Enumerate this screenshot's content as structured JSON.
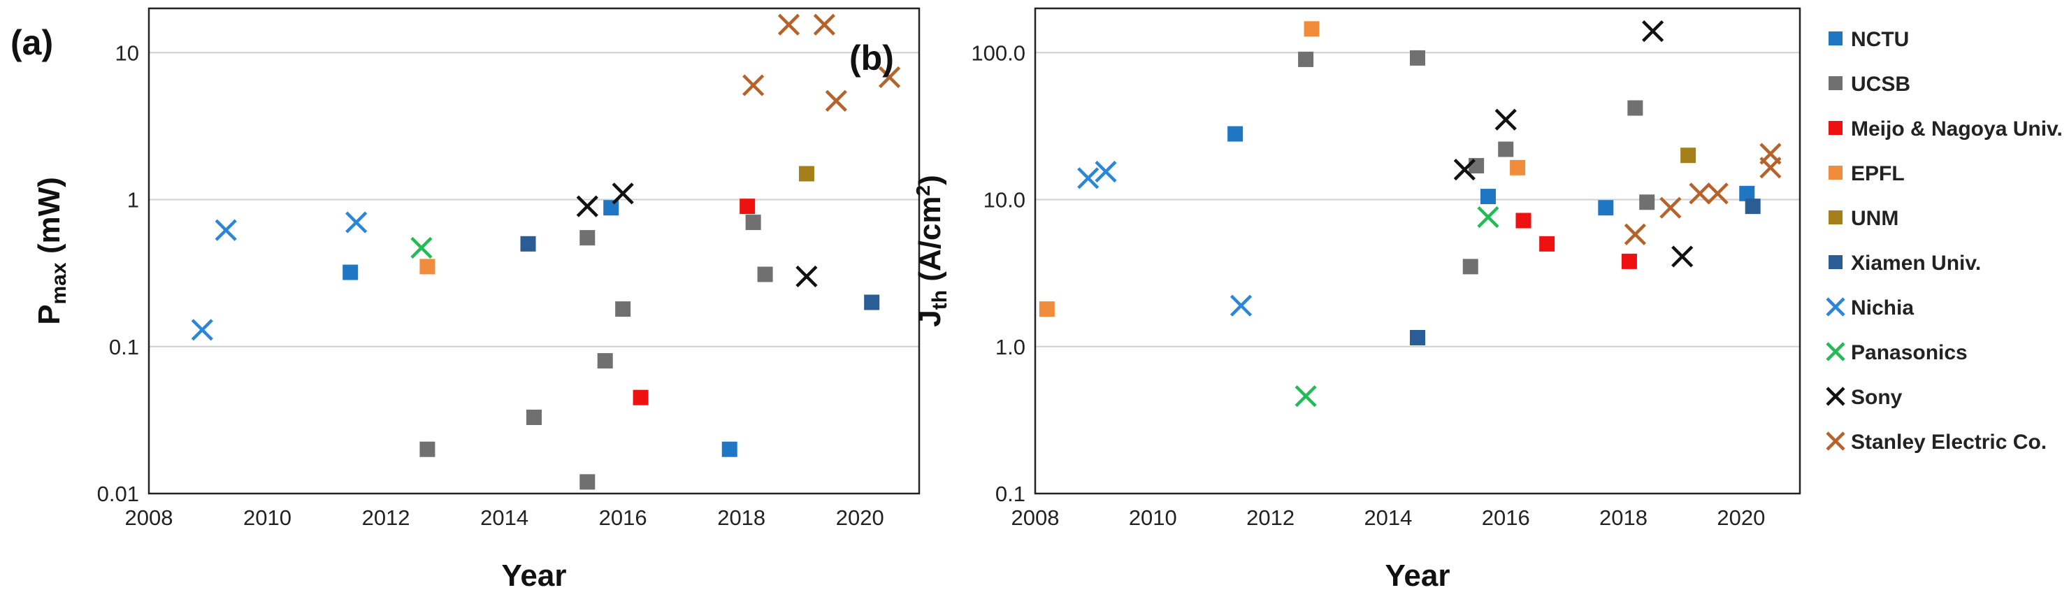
{
  "series_styles": [
    {
      "name": "NCTU",
      "marker": "square",
      "color": "#1f77c4"
    },
    {
      "name": "UCSB",
      "marker": "square",
      "color": "#707070"
    },
    {
      "name": "Meijo & Nagoya Univ.",
      "marker": "square",
      "color": "#ee1111"
    },
    {
      "name": "EPFL",
      "marker": "square",
      "color": "#f08c3c"
    },
    {
      "name": "UNM",
      "marker": "square",
      "color": "#a5801a"
    },
    {
      "name": "Xiamen Univ.",
      "marker": "square",
      "color": "#2a5d96"
    },
    {
      "name": "Nichia",
      "marker": "x",
      "color": "#2b86d8"
    },
    {
      "name": "Panasonics",
      "marker": "x",
      "color": "#22bb55"
    },
    {
      "name": "Sony",
      "marker": "x",
      "color": "#111111"
    },
    {
      "name": "Stanley Electric Co.",
      "marker": "x",
      "color": "#b5632b"
    }
  ],
  "chart_data": [
    {
      "type": "scatter",
      "panel": "(a)",
      "xlabel": "Year",
      "ylabel_main": "P",
      "ylabel_sub": "max",
      "ylabel_unit": " (mW)",
      "xlim": [
        2008,
        2021
      ],
      "ylim": [
        0.01,
        20
      ],
      "yscale": "log",
      "xticks": [
        2008,
        2010,
        2012,
        2014,
        2016,
        2018,
        2020
      ],
      "yticks": [
        {
          "value": 0.01,
          "label": "0.01"
        },
        {
          "value": 0.1,
          "label": "0.1"
        },
        {
          "value": 1,
          "label": "1"
        },
        {
          "value": 10,
          "label": "10"
        }
      ],
      "grid": true,
      "series": [
        {
          "name": "NCTU",
          "points": [
            [
              2011.4,
              0.32
            ],
            [
              2015.8,
              0.88
            ],
            [
              2017.8,
              0.02
            ]
          ]
        },
        {
          "name": "UCSB",
          "points": [
            [
              2012.7,
              0.02
            ],
            [
              2014.5,
              0.033
            ],
            [
              2015.4,
              0.55
            ],
            [
              2015.4,
              0.012
            ],
            [
              2015.7,
              0.08
            ],
            [
              2016.0,
              0.18
            ],
            [
              2018.2,
              0.7
            ],
            [
              2018.4,
              0.31
            ]
          ]
        },
        {
          "name": "Meijo & Nagoya Univ.",
          "points": [
            [
              2016.3,
              0.045
            ],
            [
              2018.1,
              0.9
            ]
          ]
        },
        {
          "name": "EPFL",
          "points": [
            [
              2012.7,
              0.35
            ]
          ]
        },
        {
          "name": "UNM",
          "points": [
            [
              2019.1,
              1.5
            ]
          ]
        },
        {
          "name": "Xiamen Univ.",
          "points": [
            [
              2014.4,
              0.5
            ],
            [
              2020.2,
              0.2
            ]
          ]
        },
        {
          "name": "Nichia",
          "points": [
            [
              2008.9,
              0.13
            ],
            [
              2009.3,
              0.62
            ],
            [
              2011.5,
              0.7
            ]
          ]
        },
        {
          "name": "Panasonics",
          "points": [
            [
              2012.6,
              0.47
            ]
          ]
        },
        {
          "name": "Sony",
          "points": [
            [
              2015.4,
              0.9
            ],
            [
              2016.0,
              1.1
            ],
            [
              2019.1,
              0.3
            ]
          ]
        },
        {
          "name": "Stanley Electric Co.",
          "points": [
            [
              2018.2,
              6.0
            ],
            [
              2018.8,
              15.5
            ],
            [
              2019.4,
              15.5
            ],
            [
              2019.6,
              4.7
            ],
            [
              2020.5,
              6.8
            ]
          ]
        }
      ]
    },
    {
      "type": "scatter",
      "panel": "(b)",
      "xlabel": "Year",
      "ylabel_main": "J",
      "ylabel_sub": "th",
      "ylabel_unit": " (A/cm",
      "ylabel_sup": "2",
      "ylabel_close": ")",
      "xlim": [
        2008,
        2021
      ],
      "ylim": [
        0.1,
        200
      ],
      "yscale": "log",
      "xticks": [
        2008,
        2010,
        2012,
        2014,
        2016,
        2018,
        2020
      ],
      "yticks": [
        {
          "value": 0.1,
          "label": "0.1"
        },
        {
          "value": 1,
          "label": "1.0"
        },
        {
          "value": 10,
          "label": "10.0"
        },
        {
          "value": 100,
          "label": "100.0"
        }
      ],
      "grid": true,
      "series": [
        {
          "name": "NCTU",
          "points": [
            [
              2011.4,
              28
            ],
            [
              2015.7,
              10.5
            ],
            [
              2017.7,
              8.8
            ],
            [
              2020.1,
              11
            ]
          ]
        },
        {
          "name": "UCSB",
          "points": [
            [
              2012.6,
              90
            ],
            [
              2014.5,
              92
            ],
            [
              2015.4,
              3.5
            ],
            [
              2015.5,
              17
            ],
            [
              2016.0,
              22
            ],
            [
              2018.2,
              42
            ],
            [
              2018.4,
              9.6
            ]
          ]
        },
        {
          "name": "Meijo & Nagoya Univ.",
          "points": [
            [
              2016.3,
              7.2
            ],
            [
              2016.7,
              5.0
            ],
            [
              2018.1,
              3.8
            ]
          ]
        },
        {
          "name": "EPFL",
          "points": [
            [
              2008.2,
              1.8
            ],
            [
              2012.7,
              145
            ],
            [
              2016.2,
              16.5
            ]
          ]
        },
        {
          "name": "UNM",
          "points": [
            [
              2019.1,
              20
            ]
          ]
        },
        {
          "name": "Xiamen Univ.",
          "points": [
            [
              2014.5,
              1.15
            ],
            [
              2020.2,
              9.0
            ]
          ]
        },
        {
          "name": "Nichia",
          "points": [
            [
              2008.9,
              14
            ],
            [
              2009.2,
              15.5
            ],
            [
              2011.5,
              1.9
            ]
          ]
        },
        {
          "name": "Panasonics",
          "points": [
            [
              2012.6,
              0.46
            ],
            [
              2015.7,
              7.6
            ]
          ]
        },
        {
          "name": "Sony",
          "points": [
            [
              2015.3,
              16
            ],
            [
              2016.0,
              35
            ],
            [
              2018.5,
              140
            ],
            [
              2019.0,
              4.1
            ]
          ]
        },
        {
          "name": "Stanley Electric Co.",
          "points": [
            [
              2018.2,
              5.8
            ],
            [
              2018.8,
              8.8
            ],
            [
              2019.3,
              11
            ],
            [
              2019.6,
              11
            ],
            [
              2020.5,
              16.5
            ],
            [
              2020.5,
              20.5
            ]
          ]
        }
      ]
    }
  ]
}
